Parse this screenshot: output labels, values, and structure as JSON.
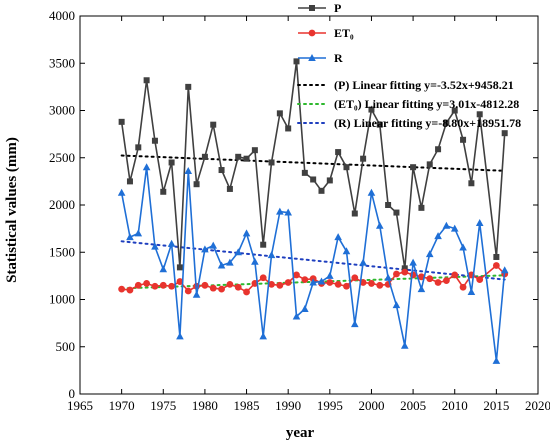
{
  "chart_data": {
    "type": "line",
    "xlabel": "year",
    "ylabel": "Statistical values (mm)",
    "xlim": [
      1965,
      2020
    ],
    "ylim": [
      0,
      4000
    ],
    "xticks": [
      1965,
      1970,
      1975,
      1980,
      1985,
      1990,
      1995,
      2000,
      2005,
      2010,
      2015,
      2020
    ],
    "yticks": [
      0,
      500,
      1000,
      1500,
      2000,
      2500,
      3000,
      3500,
      4000
    ],
    "grid": false,
    "legend_position": "top-right",
    "series": [
      {
        "name": "P",
        "color": "#404040",
        "marker": "square",
        "x": [
          1970,
          1971,
          1972,
          1973,
          1974,
          1975,
          1976,
          1977,
          1978,
          1979,
          1980,
          1981,
          1982,
          1983,
          1984,
          1985,
          1986,
          1987,
          1988,
          1989,
          1990,
          1991,
          1992,
          1993,
          1994,
          1995,
          1996,
          1997,
          1998,
          1999,
          2000,
          2001,
          2002,
          2003,
          2004,
          2005,
          2006,
          2007,
          2008,
          2009,
          2010,
          2011,
          2012,
          2013,
          2015,
          2016
        ],
        "values": [
          2880,
          2250,
          2610,
          3320,
          2680,
          2140,
          2450,
          1340,
          3250,
          2220,
          2510,
          2850,
          2370,
          2170,
          2510,
          2490,
          2580,
          1580,
          2450,
          2970,
          2810,
          3520,
          2340,
          2270,
          2150,
          2260,
          2560,
          2400,
          1910,
          2490,
          3010,
          2850,
          2000,
          1920,
          1330,
          2400,
          1970,
          2430,
          2590,
          2870,
          3000,
          2690,
          2230,
          2960,
          1450,
          2760
        ]
      },
      {
        "name": "ET₀",
        "color": "#e8342e",
        "marker": "circle",
        "x": [
          1970,
          1971,
          1972,
          1973,
          1974,
          1975,
          1976,
          1977,
          1978,
          1979,
          1980,
          1981,
          1982,
          1983,
          1984,
          1985,
          1986,
          1987,
          1988,
          1989,
          1990,
          1991,
          1992,
          1993,
          1994,
          1995,
          1996,
          1997,
          1998,
          1999,
          2000,
          2001,
          2002,
          2003,
          2004,
          2005,
          2006,
          2007,
          2008,
          2009,
          2010,
          2011,
          2012,
          2013,
          2015,
          2016
        ],
        "values": [
          1110,
          1100,
          1150,
          1170,
          1140,
          1150,
          1140,
          1190,
          1090,
          1140,
          1150,
          1120,
          1110,
          1160,
          1130,
          1080,
          1170,
          1230,
          1160,
          1150,
          1180,
          1260,
          1210,
          1220,
          1170,
          1180,
          1160,
          1140,
          1230,
          1180,
          1170,
          1150,
          1160,
          1270,
          1290,
          1260,
          1240,
          1220,
          1180,
          1200,
          1260,
          1130,
          1260,
          1210,
          1360,
          1270
        ]
      },
      {
        "name": "R",
        "color": "#1f6fd6",
        "marker": "triangle",
        "x": [
          1970,
          1971,
          1972,
          1973,
          1974,
          1975,
          1976,
          1977,
          1978,
          1979,
          1980,
          1981,
          1982,
          1983,
          1984,
          1985,
          1986,
          1987,
          1988,
          1989,
          1990,
          1991,
          1992,
          1993,
          1994,
          1995,
          1996,
          1997,
          1998,
          1999,
          2000,
          2001,
          2002,
          2003,
          2004,
          2005,
          2006,
          2007,
          2008,
          2009,
          2010,
          2011,
          2012,
          2013,
          2015,
          2016
        ],
        "values": [
          2130,
          1660,
          1700,
          2400,
          1560,
          1320,
          1590,
          610,
          2360,
          1050,
          1530,
          1570,
          1360,
          1390,
          1500,
          1700,
          1400,
          610,
          1470,
          1930,
          1920,
          820,
          900,
          1180,
          1190,
          1250,
          1660,
          1510,
          740,
          1390,
          2130,
          1780,
          1230,
          940,
          510,
          1390,
          1110,
          1480,
          1670,
          1780,
          1750,
          1550,
          1080,
          1810,
          350,
          1310
        ]
      }
    ],
    "fits": [
      {
        "label": "(P)   Linear fitting  y=-3.52x+9458.21",
        "slope": -3.52,
        "intercept": 9458.21,
        "color": "#000000",
        "x_range": [
          1970,
          2016
        ]
      },
      {
        "label": "(ET₀) Linear fitting  y=3.01x-4812.28",
        "slope": 3.01,
        "intercept": -4812.28,
        "color": "#2eb82e",
        "x_range": [
          1970,
          2016
        ]
      },
      {
        "label": "(R)   Linear fitting  y=-8.80x+18951.78",
        "slope": -8.8,
        "intercept": 18951.78,
        "color": "#1f3fbf",
        "x_range": [
          1970,
          2016
        ]
      }
    ]
  }
}
